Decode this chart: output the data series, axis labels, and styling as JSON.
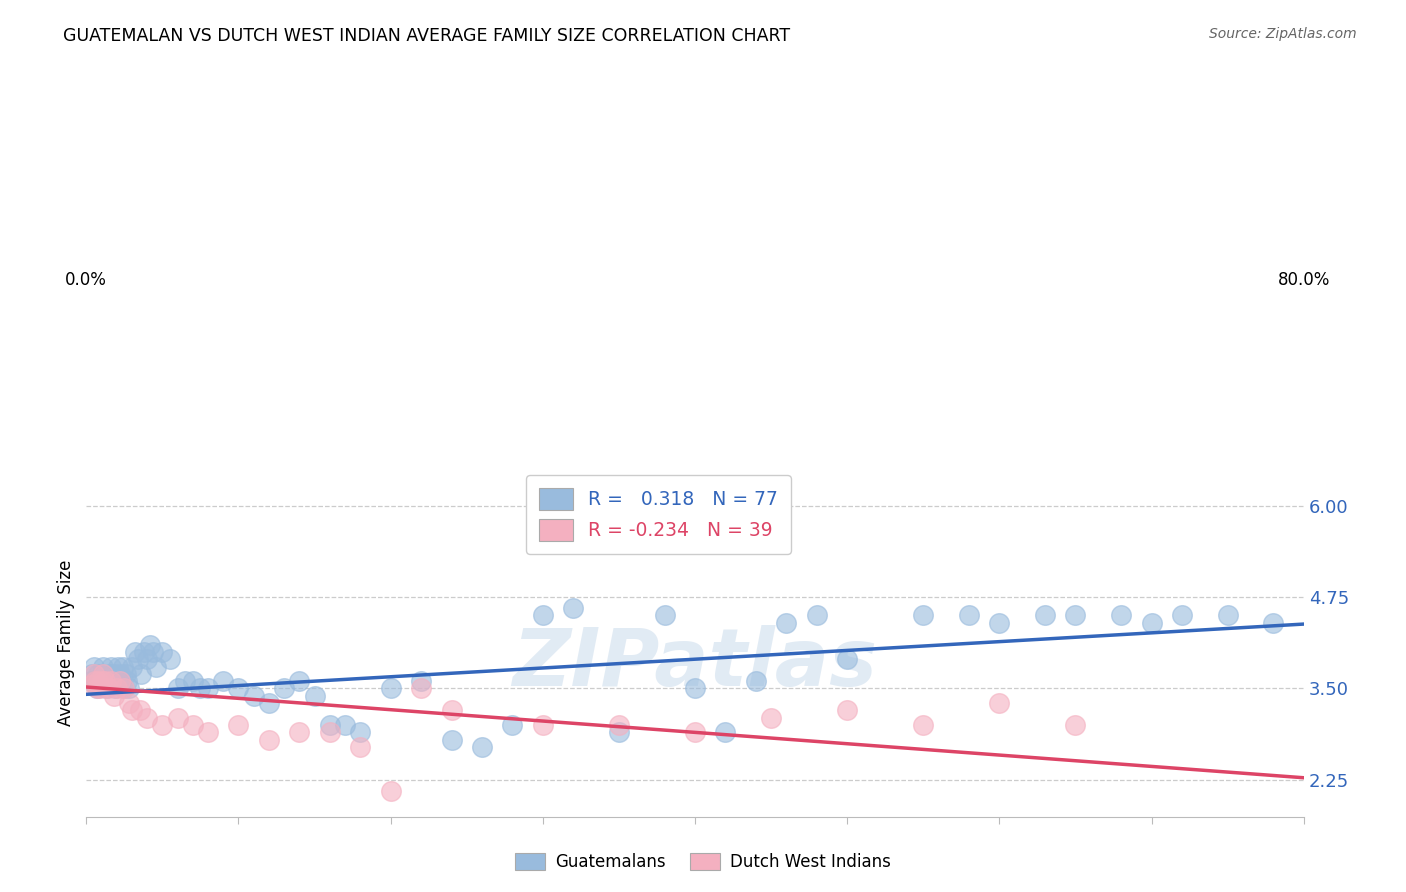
{
  "title": "GUATEMALAN VS DUTCH WEST INDIAN AVERAGE FAMILY SIZE CORRELATION CHART",
  "source": "Source: ZipAtlas.com",
  "ylabel": "Average Family Size",
  "yticks_right": [
    2.25,
    3.5,
    4.75,
    6.0
  ],
  "ytick_labels_right": [
    "2.25",
    "3.50",
    "4.75",
    "6.00"
  ],
  "blue_color": "#99bbdd",
  "pink_color": "#f4b0c0",
  "blue_line_color": "#3366bb",
  "pink_line_color": "#dd4466",
  "watermark": "ZIPatlas",
  "legend_blue_label": "R =   0.318   N = 77",
  "legend_pink_label": "R = -0.234   N = 39",
  "bottom_legend_blue": "Guatemalans",
  "bottom_legend_pink": "Dutch West Indians",
  "blue_line_y0": 3.42,
  "blue_line_y1": 4.38,
  "pink_line_y0": 3.52,
  "pink_line_y1": 2.28,
  "xmin": 0.0,
  "xmax": 80.0,
  "ymin": 1.75,
  "ymax": 6.5,
  "blue_scatter_x": [
    0.3,
    0.4,
    0.5,
    0.6,
    0.7,
    0.8,
    0.9,
    1.0,
    1.1,
    1.2,
    1.3,
    1.4,
    1.5,
    1.6,
    1.7,
    1.8,
    1.9,
    2.0,
    2.1,
    2.2,
    2.3,
    2.4,
    2.5,
    2.6,
    2.7,
    2.8,
    3.0,
    3.2,
    3.4,
    3.6,
    3.8,
    4.0,
    4.2,
    4.4,
    4.6,
    5.0,
    5.5,
    6.0,
    6.5,
    7.0,
    7.5,
    8.0,
    9.0,
    10.0,
    11.0,
    12.0,
    13.0,
    14.0,
    15.0,
    16.0,
    17.0,
    18.0,
    20.0,
    22.0,
    24.0,
    26.0,
    28.0,
    30.0,
    32.0,
    35.0,
    38.0,
    40.0,
    42.0,
    44.0,
    46.0,
    48.0,
    50.0,
    55.0,
    58.0,
    60.0,
    63.0,
    65.0,
    68.0,
    70.0,
    72.0,
    75.0,
    78.0
  ],
  "blue_scatter_y": [
    3.6,
    3.7,
    3.8,
    3.6,
    3.5,
    3.7,
    3.6,
    3.7,
    3.8,
    3.6,
    3.5,
    3.6,
    3.7,
    3.8,
    3.6,
    3.7,
    3.5,
    3.6,
    3.8,
    3.7,
    3.6,
    3.8,
    3.5,
    3.7,
    3.6,
    3.5,
    3.8,
    4.0,
    3.9,
    3.7,
    4.0,
    3.9,
    4.1,
    4.0,
    3.8,
    4.0,
    3.9,
    3.5,
    3.6,
    3.6,
    3.5,
    3.5,
    3.6,
    3.5,
    3.4,
    3.3,
    3.5,
    3.6,
    3.4,
    3.0,
    3.0,
    2.9,
    3.5,
    3.6,
    2.8,
    2.7,
    3.0,
    4.5,
    4.6,
    2.9,
    4.5,
    3.5,
    2.9,
    3.6,
    4.4,
    4.5,
    3.9,
    4.5,
    4.5,
    4.4,
    4.5,
    4.5,
    4.5,
    4.4,
    4.5,
    4.5,
    4.4
  ],
  "pink_scatter_x": [
    0.3,
    0.5,
    0.6,
    0.7,
    0.8,
    0.9,
    1.0,
    1.1,
    1.2,
    1.4,
    1.6,
    1.8,
    2.0,
    2.2,
    2.5,
    2.8,
    3.0,
    3.5,
    4.0,
    5.0,
    6.0,
    7.0,
    8.0,
    10.0,
    12.0,
    14.0,
    16.0,
    18.0,
    20.0,
    22.0,
    24.0,
    30.0,
    35.0,
    40.0,
    45.0,
    50.0,
    55.0,
    60.0,
    65.0
  ],
  "pink_scatter_y": [
    3.55,
    3.7,
    3.6,
    3.5,
    3.6,
    3.5,
    3.6,
    3.7,
    3.6,
    3.5,
    3.6,
    3.4,
    3.5,
    3.6,
    3.5,
    3.3,
    3.2,
    3.2,
    3.1,
    3.0,
    3.1,
    3.0,
    2.9,
    3.0,
    2.8,
    2.9,
    2.9,
    2.7,
    2.1,
    3.5,
    3.2,
    3.0,
    3.0,
    2.9,
    3.1,
    3.2,
    3.0,
    3.3,
    3.0
  ]
}
